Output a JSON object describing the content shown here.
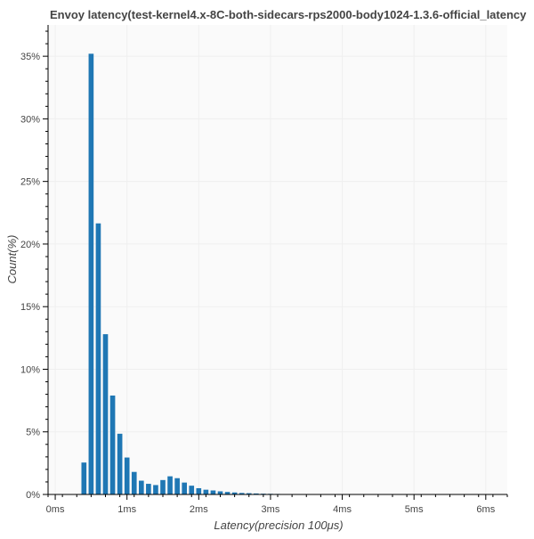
{
  "chart_data": {
    "type": "bar",
    "title": "Envoy latency(test-kernel4.x-8C-both-sidecars-rps2000-body1024-1.3.6-official_latency",
    "xlabel": "Latency(precision 100μs)",
    "ylabel": "Count(%)",
    "x_unit": "ms",
    "xlim": [
      -0.1,
      6.3
    ],
    "ylim": [
      0,
      37.5
    ],
    "x_ticks": [
      {
        "value": 0,
        "label": "0ms"
      },
      {
        "value": 1,
        "label": "1ms"
      },
      {
        "value": 2,
        "label": "2ms"
      },
      {
        "value": 3,
        "label": "3ms"
      },
      {
        "value": 4,
        "label": "4ms"
      },
      {
        "value": 5,
        "label": "5ms"
      },
      {
        "value": 6,
        "label": "6ms"
      }
    ],
    "y_ticks": [
      {
        "value": 0,
        "label": "0%"
      },
      {
        "value": 5,
        "label": "5%"
      },
      {
        "value": 10,
        "label": "10%"
      },
      {
        "value": 15,
        "label": "15%"
      },
      {
        "value": 20,
        "label": "20%"
      },
      {
        "value": 25,
        "label": "25%"
      },
      {
        "value": 30,
        "label": "30%"
      },
      {
        "value": 35,
        "label": "35%"
      }
    ],
    "bar_width": 0.07,
    "x": [
      0.4,
      0.5,
      0.6,
      0.7,
      0.8,
      0.9,
      1.0,
      1.1,
      1.2,
      1.3,
      1.4,
      1.5,
      1.6,
      1.7,
      1.8,
      1.9,
      2.0,
      2.1,
      2.2,
      2.3,
      2.4,
      2.5,
      2.6,
      2.7,
      2.8,
      2.9,
      3.0,
      3.1,
      3.2,
      3.3,
      3.4,
      3.5,
      3.6
    ],
    "values": [
      2.55,
      35.2,
      21.65,
      12.8,
      7.9,
      4.85,
      2.95,
      1.8,
      1.1,
      0.85,
      0.75,
      1.15,
      1.45,
      1.3,
      0.95,
      0.7,
      0.5,
      0.38,
      0.32,
      0.25,
      0.2,
      0.16,
      0.12,
      0.1,
      0.08,
      0.06,
      0.05,
      0.04,
      0.03,
      0.02,
      0.02,
      0.01,
      0.01
    ],
    "bar_color": "#1f77b4",
    "plot_background": "#fafafa",
    "grid": true,
    "legend": "none"
  }
}
